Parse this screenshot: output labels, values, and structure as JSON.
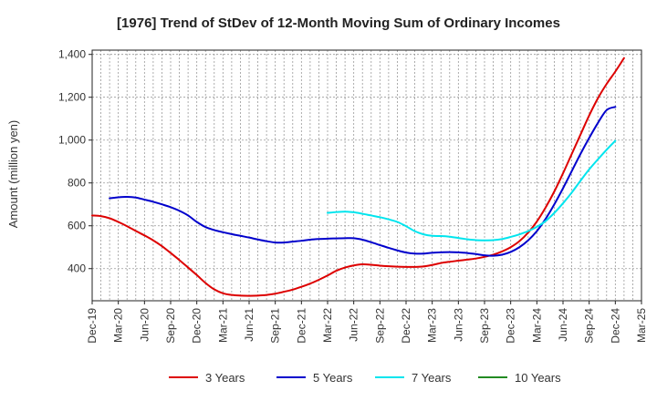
{
  "chart_data": {
    "type": "line",
    "title": "[1976]  Trend of StDev of 12-Month Moving Sum of Ordinary Incomes",
    "xlabel": "",
    "ylabel": "Amount (million yen)",
    "ylim": [
      250,
      1420
    ],
    "yticks": [
      400,
      600,
      800,
      1000,
      1200,
      1400
    ],
    "ytick_labels": [
      "400",
      "600",
      "800",
      "1,000",
      "1,200",
      "1,400"
    ],
    "x_tick_labels": [
      "Dec-19",
      "Mar-20",
      "Jun-20",
      "Sep-20",
      "Dec-20",
      "Mar-21",
      "Jun-21",
      "Sep-21",
      "Dec-21",
      "Mar-22",
      "Jun-22",
      "Sep-22",
      "Dec-22",
      "Mar-23",
      "Jun-23",
      "Sep-23",
      "Dec-23",
      "Mar-24",
      "Jun-24",
      "Sep-24",
      "Dec-24",
      "Mar-25"
    ],
    "x_range_months": [
      0,
      63
    ],
    "grid": true,
    "legend_position": "bottom",
    "series": [
      {
        "name": "3 Years",
        "color": "#dd0000",
        "points": [
          [
            0,
            648
          ],
          [
            1,
            645
          ],
          [
            2,
            635
          ],
          [
            3,
            618
          ],
          [
            4,
            598
          ],
          [
            5,
            576
          ],
          [
            6,
            555
          ],
          [
            7,
            532
          ],
          [
            8,
            505
          ],
          [
            9,
            473
          ],
          [
            10,
            440
          ],
          [
            11,
            405
          ],
          [
            12,
            370
          ],
          [
            13,
            333
          ],
          [
            14,
            303
          ],
          [
            15,
            285
          ],
          [
            16,
            277
          ],
          [
            17,
            274
          ],
          [
            18,
            273
          ],
          [
            19,
            274
          ],
          [
            20,
            277
          ],
          [
            21,
            283
          ],
          [
            22,
            292
          ],
          [
            23,
            302
          ],
          [
            24,
            315
          ],
          [
            25,
            330
          ],
          [
            26,
            348
          ],
          [
            27,
            368
          ],
          [
            28,
            390
          ],
          [
            29,
            405
          ],
          [
            30,
            415
          ],
          [
            31,
            420
          ],
          [
            32,
            418
          ],
          [
            33,
            414
          ],
          [
            34,
            411
          ],
          [
            35,
            409
          ],
          [
            36,
            408
          ],
          [
            37,
            408
          ],
          [
            38,
            410
          ],
          [
            39,
            417
          ],
          [
            40,
            426
          ],
          [
            41,
            432
          ],
          [
            42,
            437
          ],
          [
            43,
            442
          ],
          [
            44,
            447
          ],
          [
            45,
            455
          ],
          [
            46,
            465
          ],
          [
            47,
            480
          ],
          [
            48,
            500
          ],
          [
            49,
            528
          ],
          [
            50,
            568
          ],
          [
            51,
            620
          ],
          [
            52,
            685
          ],
          [
            53,
            760
          ],
          [
            54,
            845
          ],
          [
            55,
            935
          ],
          [
            56,
            1025
          ],
          [
            57,
            1115
          ],
          [
            58,
            1195
          ],
          [
            59,
            1262
          ],
          [
            60,
            1320
          ],
          [
            61,
            1383
          ]
        ]
      },
      {
        "name": "5 Years",
        "color": "#0000cc",
        "points": [
          [
            2,
            728
          ],
          [
            3,
            733
          ],
          [
            4,
            735
          ],
          [
            5,
            732
          ],
          [
            6,
            722
          ],
          [
            7,
            712
          ],
          [
            8,
            700
          ],
          [
            9,
            687
          ],
          [
            10,
            670
          ],
          [
            11,
            648
          ],
          [
            12,
            618
          ],
          [
            13,
            594
          ],
          [
            14,
            580
          ],
          [
            15,
            570
          ],
          [
            16,
            561
          ],
          [
            17,
            553
          ],
          [
            18,
            545
          ],
          [
            19,
            536
          ],
          [
            20,
            528
          ],
          [
            21,
            522
          ],
          [
            22,
            522
          ],
          [
            23,
            526
          ],
          [
            24,
            530
          ],
          [
            25,
            535
          ],
          [
            26,
            538
          ],
          [
            27,
            540
          ],
          [
            28,
            541
          ],
          [
            29,
            542
          ],
          [
            30,
            542
          ],
          [
            31,
            535
          ],
          [
            32,
            523
          ],
          [
            33,
            510
          ],
          [
            34,
            497
          ],
          [
            35,
            485
          ],
          [
            36,
            475
          ],
          [
            37,
            470
          ],
          [
            38,
            470
          ],
          [
            39,
            474
          ],
          [
            40,
            476
          ],
          [
            41,
            477
          ],
          [
            42,
            476
          ],
          [
            43,
            473
          ],
          [
            44,
            468
          ],
          [
            45,
            462
          ],
          [
            46,
            460
          ],
          [
            47,
            465
          ],
          [
            48,
            478
          ],
          [
            49,
            500
          ],
          [
            50,
            532
          ],
          [
            51,
            575
          ],
          [
            52,
            632
          ],
          [
            53,
            700
          ],
          [
            54,
            775
          ],
          [
            55,
            855
          ],
          [
            56,
            935
          ],
          [
            57,
            1010
          ],
          [
            58,
            1080
          ],
          [
            59,
            1140
          ],
          [
            60,
            1155
          ]
        ]
      },
      {
        "name": "7 Years",
        "color": "#00e5ee",
        "points": [
          [
            27,
            660
          ],
          [
            28,
            664
          ],
          [
            29,
            666
          ],
          [
            30,
            663
          ],
          [
            31,
            656
          ],
          [
            32,
            648
          ],
          [
            33,
            640
          ],
          [
            34,
            630
          ],
          [
            35,
            618
          ],
          [
            36,
            598
          ],
          [
            37,
            575
          ],
          [
            38,
            560
          ],
          [
            39,
            553
          ],
          [
            40,
            552
          ],
          [
            41,
            549
          ],
          [
            42,
            543
          ],
          [
            43,
            537
          ],
          [
            44,
            533
          ],
          [
            45,
            532
          ],
          [
            46,
            533
          ],
          [
            47,
            538
          ],
          [
            48,
            548
          ],
          [
            49,
            560
          ],
          [
            50,
            575
          ],
          [
            51,
            595
          ],
          [
            52,
            622
          ],
          [
            53,
            660
          ],
          [
            54,
            705
          ],
          [
            55,
            755
          ],
          [
            56,
            810
          ],
          [
            57,
            863
          ],
          [
            58,
            910
          ],
          [
            59,
            955
          ],
          [
            60,
            997
          ]
        ]
      },
      {
        "name": "10 Years",
        "color": "#228b22",
        "points": []
      }
    ]
  }
}
